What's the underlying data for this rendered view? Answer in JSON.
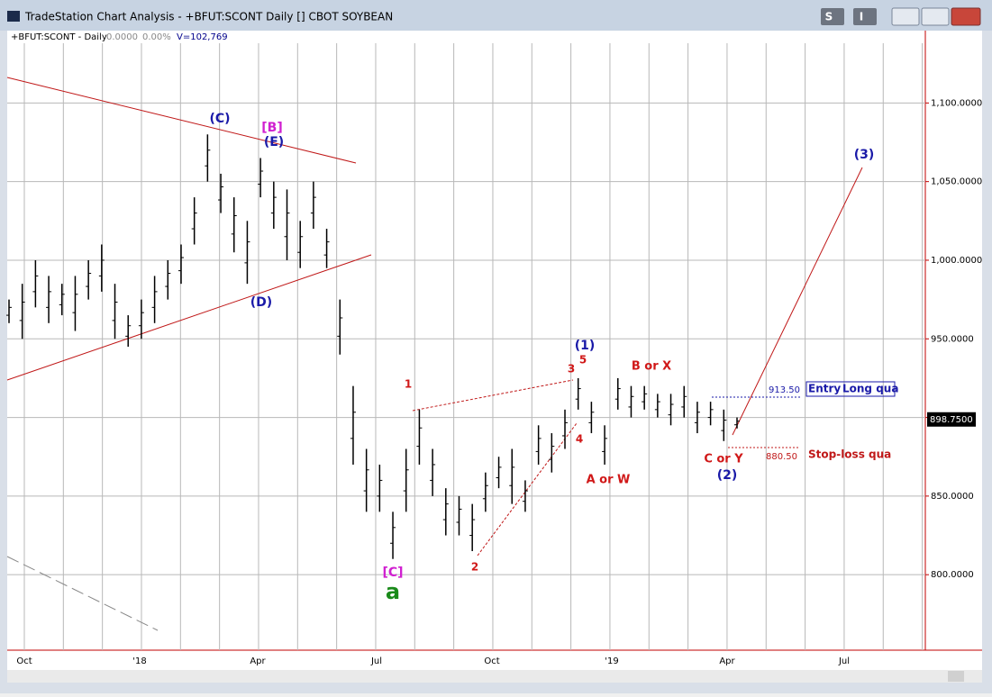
{
  "window": {
    "title": "TradeStation Chart Analysis - +BFUT:SCONT Daily [] CBOT SOYBEAN",
    "buttons": [
      "S",
      "I"
    ]
  },
  "chart_data": {
    "type": "ohlc",
    "header": {
      "symbol": "+BFUT:SCONT - Daily",
      "change": "0.0000",
      "percent": "0.00%",
      "volume": "V=102,769"
    },
    "lows": [
      960,
      950,
      970,
      960,
      965,
      955,
      975,
      980,
      950,
      945,
      950,
      960,
      975,
      985,
      1010,
      1050,
      1030,
      1005,
      985,
      1040,
      1020,
      1000,
      995,
      1020,
      995,
      940,
      870,
      840,
      840,
      810,
      840,
      870,
      850,
      825,
      825,
      815,
      840,
      855,
      845,
      840,
      870,
      865,
      880,
      905,
      890,
      870,
      905,
      900,
      905,
      900,
      895,
      900,
      890,
      895,
      885,
      893
    ],
    "highs": [
      975,
      985,
      1000,
      990,
      985,
      990,
      1000,
      1010,
      985,
      965,
      975,
      990,
      1000,
      1010,
      1040,
      1080,
      1055,
      1040,
      1025,
      1065,
      1050,
      1045,
      1025,
      1050,
      1020,
      975,
      920,
      880,
      870,
      840,
      880,
      905,
      880,
      855,
      850,
      845,
      865,
      875,
      880,
      860,
      895,
      890,
      905,
      925,
      910,
      895,
      925,
      920,
      920,
      915,
      915,
      920,
      910,
      910,
      905,
      900
    ],
    "color": "#000000",
    "ylim": [
      752,
      1138
    ],
    "yticks": [
      {
        "value": 800,
        "label": "800.0000"
      },
      {
        "value": 850,
        "label": "850.0000"
      },
      {
        "value": 900,
        "label": "900.0000"
      },
      {
        "value": 950,
        "label": "950.0000"
      },
      {
        "value": 1000,
        "label": "1,000.0000"
      },
      {
        "value": 1050,
        "label": "1,050.0000"
      },
      {
        "value": 1100,
        "label": "1,100.0000"
      }
    ],
    "last_price": {
      "value": 898.75,
      "label": "898.7500"
    },
    "xtick_labels": [
      "Oct",
      "'18",
      "Apr",
      "Jul",
      "Oct",
      "'19",
      "Apr",
      "Jul"
    ],
    "grid": true,
    "annotations": [
      {
        "text": "(C)",
        "color": "#1a1aa8"
      },
      {
        "text": "[B]",
        "color": "#d020d0"
      },
      {
        "text": "(E)",
        "color": "#1a1aa8"
      },
      {
        "text": "(D)",
        "color": "#1a1aa8"
      },
      {
        "text": "[C]",
        "color": "#d020d0"
      },
      {
        "text": "a",
        "color": "#1a8a1a"
      },
      {
        "text": "1",
        "color": "#d01818"
      },
      {
        "text": "2",
        "color": "#d01818"
      },
      {
        "text": "3",
        "color": "#d01818"
      },
      {
        "text": "5",
        "color": "#d01818"
      },
      {
        "text": "4",
        "color": "#d01818"
      },
      {
        "text": "(1)",
        "color": "#1a1aa8"
      },
      {
        "text": "B or X",
        "color": "#d01818"
      },
      {
        "text": "A or W",
        "color": "#d01818"
      },
      {
        "text": "C or Y",
        "color": "#d01818"
      },
      {
        "text": "(2)",
        "color": "#1a1aa8"
      },
      {
        "text": "(3)",
        "color": "#1a1aa8"
      }
    ],
    "entry": {
      "price": "913.50",
      "label": "Entry",
      "label2": "Long qua"
    },
    "stop": {
      "price": "880.50",
      "label": "Stop-loss qua"
    }
  }
}
